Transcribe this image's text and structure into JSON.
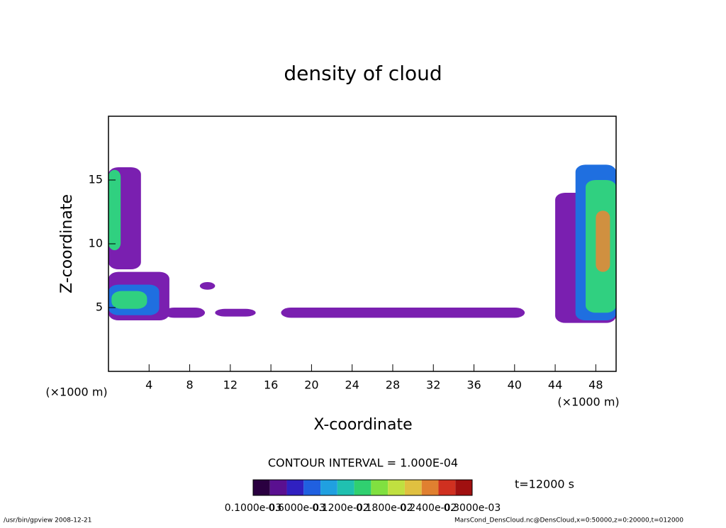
{
  "chart_data": {
    "type": "contour",
    "title": "density of cloud",
    "xlabel": "X-coordinate",
    "ylabel": "Z-coordinate",
    "x_unit": "(×1000 m)",
    "xlim": [
      0,
      50
    ],
    "ylim": [
      0,
      20
    ],
    "xticks": [
      4,
      8,
      12,
      16,
      20,
      24,
      28,
      32,
      36,
      40,
      44,
      48
    ],
    "yticks": [
      5,
      10,
      15
    ],
    "regions": [
      {
        "x": [
          17,
          41
        ],
        "z": [
          4.2,
          5.0
        ],
        "color": "#7a1fb0"
      },
      {
        "x": [
          10.5,
          14.5
        ],
        "z": [
          4.3,
          4.9
        ],
        "color": "#7a1fb0"
      },
      {
        "x": [
          5.5,
          9.5
        ],
        "z": [
          4.2,
          5.0
        ],
        "color": "#7a1fb0"
      },
      {
        "x": [
          9.0,
          10.5
        ],
        "z": [
          6.4,
          7.0
        ],
        "color": "#7a1fb0"
      },
      {
        "x": [
          0,
          6.0
        ],
        "z": [
          4.0,
          7.8
        ],
        "color": "#7a1fb0"
      },
      {
        "x": [
          0,
          5.0
        ],
        "z": [
          4.4,
          6.8
        ],
        "color": "#1f6fe0"
      },
      {
        "x": [
          0.3,
          3.8
        ],
        "z": [
          4.9,
          6.3
        ],
        "color": "#30d080"
      },
      {
        "x": [
          0,
          3.2
        ],
        "z": [
          8.0,
          16.0
        ],
        "color": "#7a1fb0"
      },
      {
        "x": [
          0,
          1.2
        ],
        "z": [
          9.5,
          15.8
        ],
        "color": "#30d080"
      },
      {
        "x": [
          44.0,
          50
        ],
        "z": [
          3.8,
          14.0
        ],
        "color": "#7a1fb0"
      },
      {
        "x": [
          46.0,
          50
        ],
        "z": [
          4.0,
          16.2
        ],
        "color": "#1f6fe0"
      },
      {
        "x": [
          47.0,
          50
        ],
        "z": [
          4.6,
          15.0
        ],
        "color": "#30d080"
      },
      {
        "x": [
          48.0,
          49.4
        ],
        "z": [
          7.8,
          12.6
        ],
        "color": "#d09040"
      }
    ],
    "contour_interval": "CONTOUR INTERVAL = 1.000E-04",
    "time_label": "t=12000 s",
    "colorbar_colors": [
      "#2a0040",
      "#5a1090",
      "#3020c0",
      "#2060e0",
      "#20a0e0",
      "#20c0b0",
      "#30d070",
      "#80e040",
      "#c0e040",
      "#e0c040",
      "#e08030",
      "#d03020",
      "#a01010"
    ],
    "colorbar_labels": [
      "0.1000e-03",
      "0.6000e-03",
      "0.1200e-02",
      "0.1800e-02",
      "0.2400e-02",
      "0.3000e-03"
    ],
    "footer_left": "/usr/bin/gpview   2008-12-21",
    "footer_right": "MarsCond_DensCloud.nc@DensCloud,x=0:50000,z=0:20000,t=012000"
  }
}
